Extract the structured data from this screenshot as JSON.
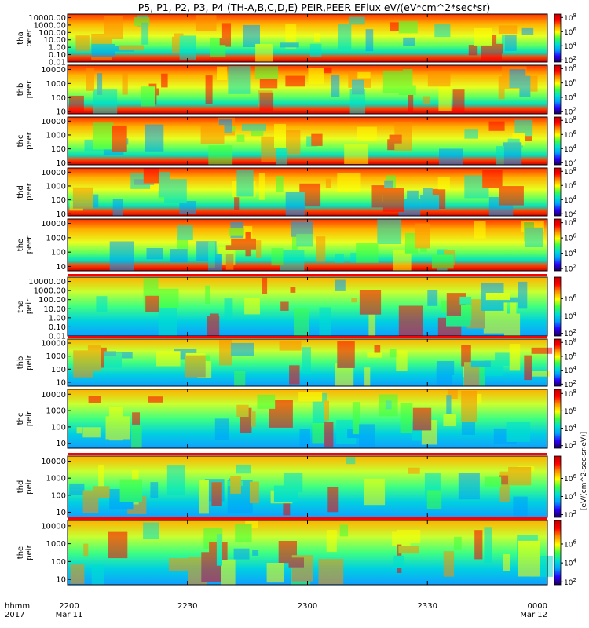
{
  "title": "P5, P1, P2, P3, P4 (TH-A,B,C,D,E) PEIR,PEER EFlux eV/(eV*cm^2*sec*sr)",
  "colorbar_unit": "[eV/(cm^2-sec-sr-eV)]",
  "colors": {
    "colormap": [
      "#1a0050",
      "#2a00ff",
      "#00a0ff",
      "#00e0d0",
      "#40ff40",
      "#ffff00",
      "#ff9000",
      "#ff0000",
      "#c00000"
    ],
    "background": "#ffffff",
    "frame": "#000000"
  },
  "chart_data": {
    "type": "heatmap",
    "time_axis": {
      "label_line1": "hhmm",
      "label_line2": "2017",
      "ticks": [
        {
          "time": "2200",
          "date": "Mar 11"
        },
        {
          "time": "2230",
          "date": ""
        },
        {
          "time": "2300",
          "date": ""
        },
        {
          "time": "2330",
          "date": ""
        },
        {
          "time": "0000",
          "date": "Mar 12"
        }
      ],
      "range_minutes": [
        0,
        120
      ]
    },
    "panels": [
      {
        "probe": "tha",
        "species": "peer",
        "ylim": [
          0.01,
          30000
        ],
        "yticks": [
          "10000.00",
          "1000.00",
          "100.00",
          "10.00",
          "1.00",
          "0.10",
          "0.01"
        ],
        "ytick_values": [
          10000,
          1000,
          100,
          10,
          1,
          0.1,
          0.01
        ],
        "colorbar_ticks": [
          "10^8",
          "10^6",
          "10^4",
          "10^2"
        ],
        "colorbar_values": [
          100000000,
          1000000,
          10000,
          100
        ]
      },
      {
        "probe": "thb",
        "species": "peer",
        "ylim": [
          7,
          20000
        ],
        "yticks": [
          "10000",
          "1000",
          "100",
          "10"
        ],
        "ytick_values": [
          10000,
          1000,
          100,
          10
        ],
        "colorbar_ticks": [
          "10^8",
          "10^6",
          "10^4",
          "10^2"
        ],
        "colorbar_values": [
          100000000,
          1000000,
          10000,
          100
        ]
      },
      {
        "probe": "thc",
        "species": "peer",
        "ylim": [
          7,
          20000
        ],
        "yticks": [
          "10000",
          "1000",
          "100",
          "10"
        ],
        "ytick_values": [
          10000,
          1000,
          100,
          10
        ],
        "colorbar_ticks": [
          "10^8",
          "10^6",
          "10^4",
          "10^2"
        ],
        "colorbar_values": [
          100000000,
          1000000,
          10000,
          100
        ]
      },
      {
        "probe": "thd",
        "species": "peer",
        "ylim": [
          7,
          20000
        ],
        "yticks": [
          "10000",
          "1000",
          "100",
          "10"
        ],
        "ytick_values": [
          10000,
          1000,
          100,
          10
        ],
        "colorbar_ticks": [
          "10^8",
          "10^6",
          "10^4",
          "10^2"
        ],
        "colorbar_values": [
          100000000,
          1000000,
          10000,
          100
        ]
      },
      {
        "probe": "the",
        "species": "peer",
        "ylim": [
          5,
          20000
        ],
        "yticks": [
          "10000",
          "1000",
          "100",
          "10"
        ],
        "ytick_values": [
          10000,
          1000,
          100,
          10
        ],
        "colorbar_ticks": [
          "10^8",
          "10^6",
          "10^4",
          "10^2"
        ],
        "colorbar_values": [
          100000000,
          1000000,
          10000,
          100
        ]
      },
      {
        "probe": "tha",
        "species": "peir",
        "ylim": [
          0.01,
          30000
        ],
        "yticks": [
          "10000.00",
          "1000.00",
          "100.00",
          "10.00",
          "1.00",
          "0.10",
          "0.01"
        ],
        "ytick_values": [
          10000,
          1000,
          100,
          10,
          1,
          0.1,
          0.01
        ],
        "colorbar_ticks": [
          "10^6",
          "10^4",
          "10^2"
        ],
        "colorbar_values": [
          1000000,
          10000,
          100
        ]
      },
      {
        "probe": "thb",
        "species": "peir",
        "ylim": [
          5,
          20000
        ],
        "yticks": [
          "10000",
          "1000",
          "100",
          "10"
        ],
        "ytick_values": [
          10000,
          1000,
          100,
          10
        ],
        "colorbar_ticks": [
          "10^8",
          "10^6",
          "10^4",
          "10^2"
        ],
        "colorbar_values": [
          100000000,
          1000000,
          10000,
          100
        ]
      },
      {
        "probe": "thc",
        "species": "peir",
        "ylim": [
          5,
          20000
        ],
        "yticks": [
          "10000",
          "1000",
          "100",
          "10"
        ],
        "ytick_values": [
          10000,
          1000,
          100,
          10
        ],
        "colorbar_ticks": [
          "10^8",
          "10^6",
          "10^4",
          "10^2"
        ],
        "colorbar_values": [
          100000000,
          1000000,
          10000,
          100
        ]
      },
      {
        "probe": "thd",
        "species": "peir",
        "ylim": [
          5,
          20000
        ],
        "yticks": [
          "10000",
          "1000",
          "100",
          "10"
        ],
        "ytick_values": [
          10000,
          1000,
          100,
          10
        ],
        "colorbar_ticks": [
          "10^6",
          "10^4",
          "10^2"
        ],
        "colorbar_values": [
          1000000,
          10000,
          100
        ]
      },
      {
        "probe": "the",
        "species": "peir",
        "ylim": [
          5,
          20000
        ],
        "yticks": [
          "10000",
          "1000",
          "100",
          "10"
        ],
        "ytick_values": [
          10000,
          1000,
          100,
          10
        ],
        "colorbar_ticks": [
          "10^6",
          "10^4",
          "10^2"
        ],
        "colorbar_values": [
          1000000,
          10000,
          100
        ]
      }
    ]
  }
}
